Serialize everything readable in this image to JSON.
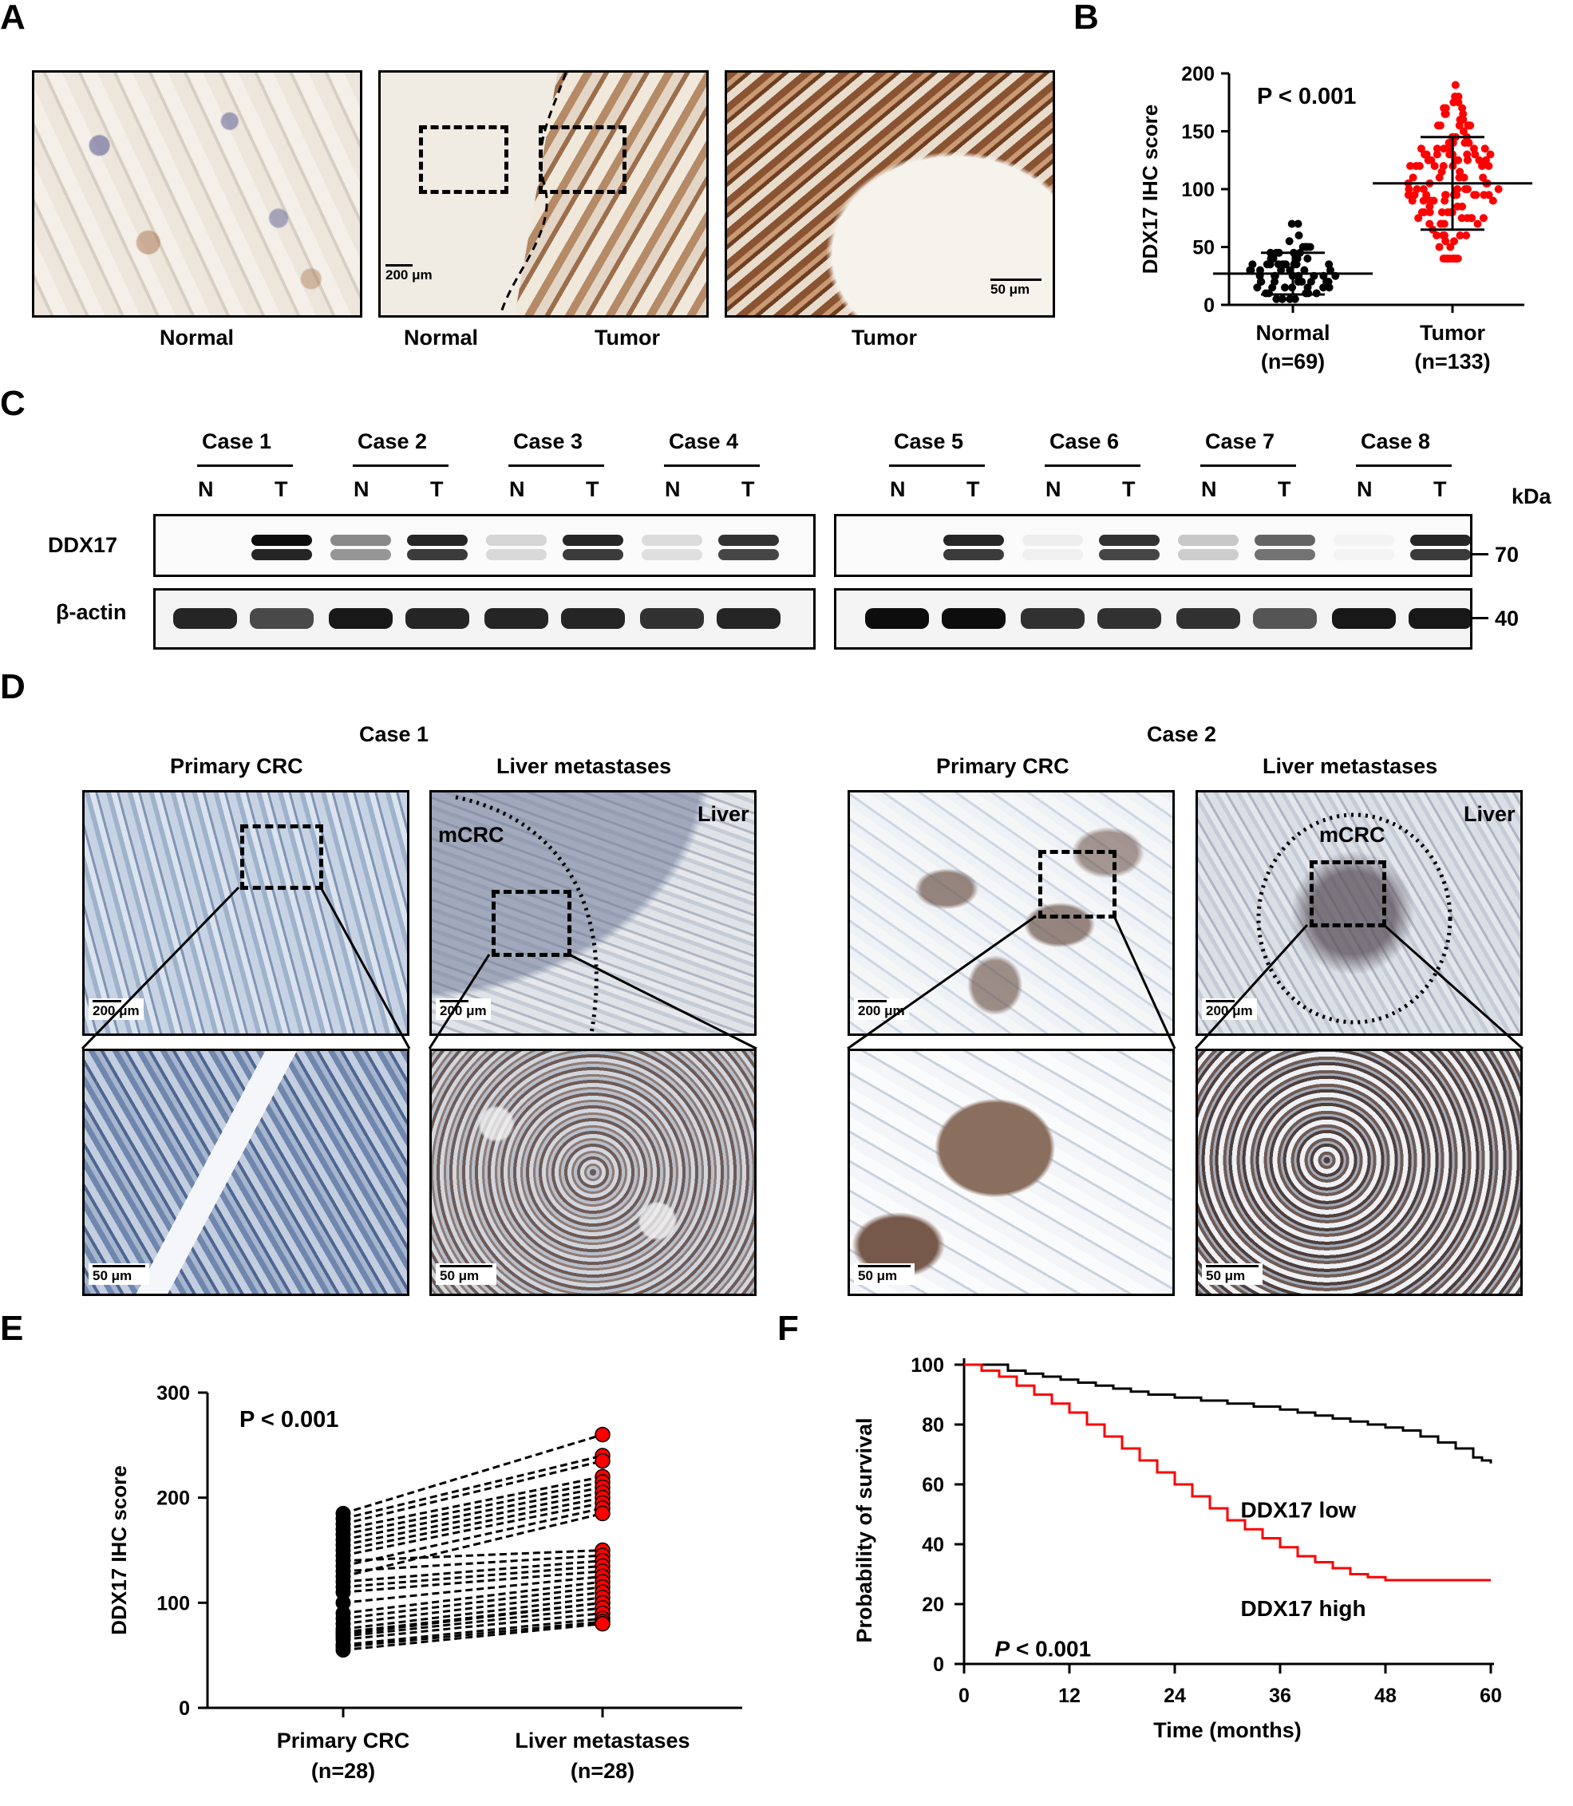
{
  "panel_labels": {
    "a": "A",
    "b": "B",
    "c": "C",
    "d": "D",
    "e": "E",
    "f": "F"
  },
  "panel_a": {
    "labels": [
      "Normal",
      "Normal",
      "Tumor",
      "Tumor"
    ],
    "scale_bars": [
      "200 μm",
      "50 μm"
    ]
  },
  "panel_b": {
    "chart_data": {
      "type": "scatter",
      "ylabel": "DDX17 IHC score",
      "ylim": [
        0,
        200
      ],
      "yticks": [
        0,
        50,
        100,
        150,
        200
      ],
      "categories": [
        "Normal\n(n=69)",
        "Tumor\n(n=133)"
      ],
      "category_names": [
        "Normal",
        "Tumor"
      ],
      "category_n": [
        "(n=69)",
        "(n=133)"
      ],
      "annotation": "P < 0.001",
      "series": [
        {
          "name": "Normal",
          "n": 69,
          "mean": 27,
          "sd": 18,
          "min": 5,
          "max": 80,
          "color": "#000000"
        },
        {
          "name": "Tumor",
          "n": 133,
          "mean": 105,
          "sd": 40,
          "min": 40,
          "max": 190,
          "color": "#ff0000"
        }
      ]
    }
  },
  "panel_c": {
    "cases_left": [
      "Case 1",
      "Case 2",
      "Case 3",
      "Case 4"
    ],
    "cases_right": [
      "Case 5",
      "Case 6",
      "Case 7",
      "Case 8"
    ],
    "n_label": "N",
    "t_label": "T",
    "row_labels": [
      "DDX17",
      "β-actin"
    ],
    "kda_label": "kDa",
    "mw_markers": [
      "70",
      "40"
    ]
  },
  "panel_d": {
    "case1": {
      "title": "Case 1",
      "left": "Primary CRC",
      "right": "Liver metastases"
    },
    "case2": {
      "title": "Case 2",
      "left": "Primary CRC",
      "right": "Liver metastases"
    },
    "tissue_labels": {
      "mcrc": "mCRC",
      "liver": "Liver"
    },
    "scale_bars": [
      "200 μm",
      "50 μm"
    ]
  },
  "panel_e": {
    "chart_data": {
      "type": "line",
      "ylabel": "DDX17 IHC score",
      "ylim": [
        0,
        300
      ],
      "yticks": [
        0,
        100,
        200,
        300
      ],
      "categories": [
        "Primary CRC\n(n=28)",
        "Liver metastases\n(n=28)"
      ],
      "category_names": [
        "Primary CRC",
        "Liver metastases"
      ],
      "category_n": [
        "(n=28)",
        "(n=28)"
      ],
      "annotation": "P < 0.001",
      "pairs": [
        [
          185,
          260
        ],
        [
          180,
          240
        ],
        [
          175,
          235
        ],
        [
          170,
          220
        ],
        [
          165,
          215
        ],
        [
          160,
          210
        ],
        [
          155,
          205
        ],
        [
          150,
          200
        ],
        [
          145,
          195
        ],
        [
          140,
          150
        ],
        [
          135,
          190
        ],
        [
          130,
          145
        ],
        [
          125,
          185
        ],
        [
          120,
          140
        ],
        [
          115,
          135
        ],
        [
          110,
          130
        ],
        [
          100,
          125
        ],
        [
          90,
          120
        ],
        [
          85,
          115
        ],
        [
          80,
          110
        ],
        [
          75,
          105
        ],
        [
          72,
          100
        ],
        [
          70,
          100
        ],
        [
          68,
          95
        ],
        [
          65,
          90
        ],
        [
          60,
          85
        ],
        [
          58,
          82
        ],
        [
          55,
          80
        ]
      ],
      "colors": {
        "primary": "#000000",
        "metastases": "#ff0000"
      }
    }
  },
  "panel_f": {
    "chart_data": {
      "type": "line",
      "xlabel": "Time (months)",
      "ylabel": "Probability of survival",
      "xlim": [
        0,
        60
      ],
      "ylim": [
        0,
        100
      ],
      "xticks": [
        0,
        12,
        24,
        36,
        48,
        60
      ],
      "yticks": [
        0,
        20,
        40,
        60,
        80,
        100
      ],
      "annotation_italic": "P",
      "annotation_rest": " < 0.001",
      "series": [
        {
          "name": "DDX17 low",
          "color": "#000000",
          "steps": [
            [
              0,
              100
            ],
            [
              5,
              98
            ],
            [
              7,
              97
            ],
            [
              9,
              96
            ],
            [
              11,
              95
            ],
            [
              13,
              94
            ],
            [
              15,
              93
            ],
            [
              17,
              92
            ],
            [
              19,
              91
            ],
            [
              21,
              90
            ],
            [
              24,
              89
            ],
            [
              27,
              88
            ],
            [
              30,
              87
            ],
            [
              33,
              86
            ],
            [
              36,
              85
            ],
            [
              38,
              84
            ],
            [
              40,
              83
            ],
            [
              42,
              82
            ],
            [
              44,
              81
            ],
            [
              46,
              80
            ],
            [
              48,
              79
            ],
            [
              50,
              78
            ],
            [
              52,
              76
            ],
            [
              54,
              74
            ],
            [
              56,
              72
            ],
            [
              58,
              69
            ],
            [
              59,
              68
            ],
            [
              60,
              67
            ]
          ]
        },
        {
          "name": "DDX17 high",
          "color": "#ff0000",
          "steps": [
            [
              0,
              100
            ],
            [
              2,
              98
            ],
            [
              4,
              96
            ],
            [
              6,
              93
            ],
            [
              8,
              90
            ],
            [
              10,
              87
            ],
            [
              12,
              84
            ],
            [
              14,
              80
            ],
            [
              16,
              76
            ],
            [
              18,
              72
            ],
            [
              20,
              68
            ],
            [
              22,
              64
            ],
            [
              24,
              60
            ],
            [
              26,
              56
            ],
            [
              28,
              52
            ],
            [
              30,
              48
            ],
            [
              32,
              45
            ],
            [
              34,
              42
            ],
            [
              36,
              39
            ],
            [
              38,
              36
            ],
            [
              40,
              34
            ],
            [
              42,
              32
            ],
            [
              44,
              30
            ],
            [
              46,
              29
            ],
            [
              48,
              28
            ],
            [
              60,
              28
            ]
          ]
        }
      ]
    }
  }
}
